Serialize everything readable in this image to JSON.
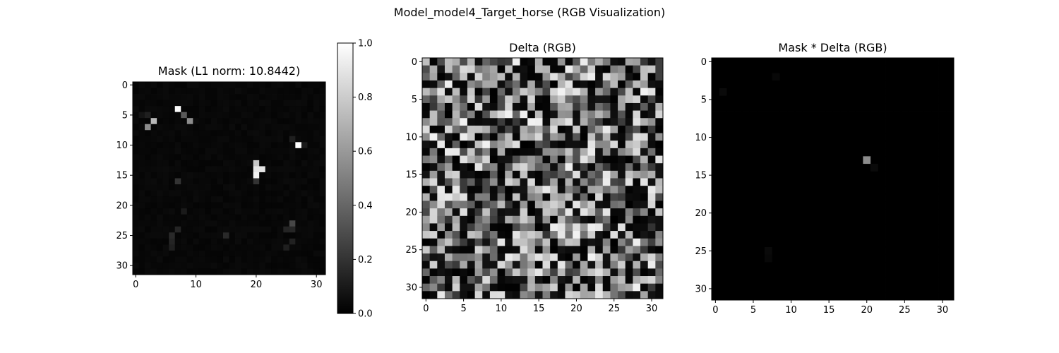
{
  "chart_data": {
    "title": "Model_model4_Target_horse (RGB Visualization)",
    "panels": [
      {
        "type": "heatmap",
        "title": "Mask (L1 norm: 10.8442)",
        "size": [
          32,
          32
        ],
        "x_ticks": [
          "0",
          "10",
          "20",
          "30"
        ],
        "y_ticks": [
          "0",
          "5",
          "10",
          "15",
          "20",
          "25",
          "30"
        ],
        "colormap": "gray",
        "colorbar": {
          "min": 0.0,
          "max": 1.0,
          "ticks": [
            "0.0",
            "0.2",
            "0.4",
            "0.6",
            "0.8",
            "1.0"
          ]
        },
        "background_level": 0.03,
        "notable_cells": [
          {
            "row": 4,
            "col": 7,
            "value": 0.98
          },
          {
            "row": 5,
            "col": 8,
            "value": 0.35
          },
          {
            "row": 6,
            "col": 9,
            "value": 0.55
          },
          {
            "row": 6,
            "col": 3,
            "value": 0.72
          },
          {
            "row": 7,
            "col": 2,
            "value": 0.55
          },
          {
            "row": 5,
            "col": 2,
            "value": 0.12
          },
          {
            "row": 5,
            "col": 1,
            "value": 0.08
          },
          {
            "row": 10,
            "col": 27,
            "value": 1.0
          },
          {
            "row": 9,
            "col": 26,
            "value": 0.12
          },
          {
            "row": 10,
            "col": 28,
            "value": 0.1
          },
          {
            "row": 13,
            "col": 20,
            "value": 0.78
          },
          {
            "row": 14,
            "col": 20,
            "value": 0.9
          },
          {
            "row": 14,
            "col": 21,
            "value": 0.9
          },
          {
            "row": 15,
            "col": 20,
            "value": 0.95
          },
          {
            "row": 16,
            "col": 20,
            "value": 0.2
          },
          {
            "row": 16,
            "col": 7,
            "value": 0.2
          },
          {
            "row": 21,
            "col": 8,
            "value": 0.1
          },
          {
            "row": 23,
            "col": 26,
            "value": 0.28
          },
          {
            "row": 24,
            "col": 25,
            "value": 0.14
          },
          {
            "row": 24,
            "col": 26,
            "value": 0.15
          },
          {
            "row": 25,
            "col": 15,
            "value": 0.16
          },
          {
            "row": 25,
            "col": 6,
            "value": 0.16
          },
          {
            "row": 24,
            "col": 7,
            "value": 0.14
          },
          {
            "row": 26,
            "col": 6,
            "value": 0.14
          },
          {
            "row": 27,
            "col": 6,
            "value": 0.12
          },
          {
            "row": 26,
            "col": 26,
            "value": 0.13
          },
          {
            "row": 27,
            "col": 25,
            "value": 0.12
          }
        ]
      },
      {
        "type": "heatmap",
        "title": "Delta (RGB)",
        "size": [
          32,
          32
        ],
        "x_ticks": [
          "0",
          "5",
          "10",
          "15",
          "20",
          "25",
          "30"
        ],
        "y_ticks": [
          "0",
          "5",
          "10",
          "15",
          "20",
          "25",
          "30"
        ],
        "colormap": "gray",
        "pattern": "dense random grayscale noise, values ~0.0–0.95",
        "seed": 1337
      },
      {
        "type": "heatmap",
        "title": "Mask * Delta (RGB)",
        "size": [
          32,
          32
        ],
        "x_ticks": [
          "0",
          "5",
          "10",
          "15",
          "20",
          "25",
          "30"
        ],
        "y_ticks": [
          "0",
          "5",
          "10",
          "15",
          "20",
          "25",
          "30"
        ],
        "colormap": "gray",
        "background_level": 0.0,
        "notable_cells": [
          {
            "row": 13,
            "col": 20,
            "value": 0.55
          },
          {
            "row": 4,
            "col": 1,
            "value": 0.04
          },
          {
            "row": 2,
            "col": 8,
            "value": 0.03
          },
          {
            "row": 25,
            "col": 7,
            "value": 0.04
          },
          {
            "row": 26,
            "col": 7,
            "value": 0.03
          },
          {
            "row": 14,
            "col": 21,
            "value": 0.04
          }
        ]
      }
    ]
  }
}
